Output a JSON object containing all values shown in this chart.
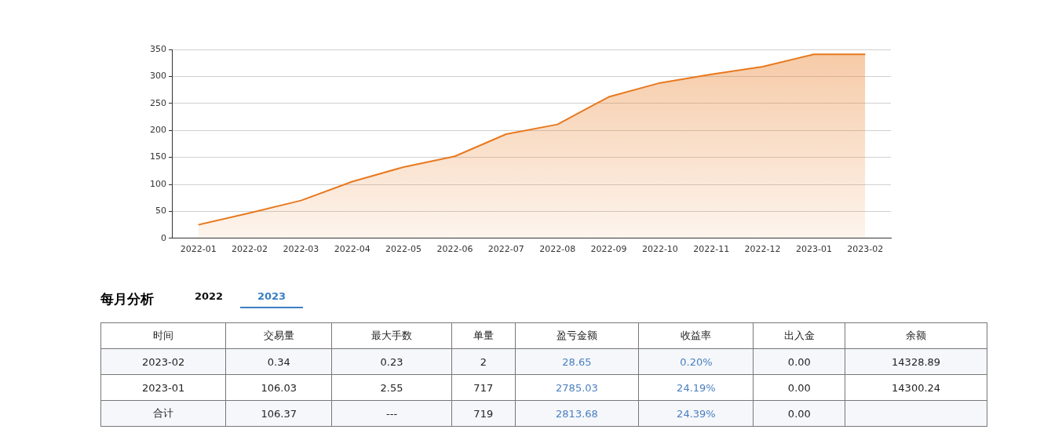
{
  "chart_data": [
    {
      "type": "area",
      "categories": [
        "2022-01",
        "2022-02",
        "2022-03",
        "2022-04",
        "2022-05",
        "2022-06",
        "2022-07",
        "2022-08",
        "2022-09",
        "2022-10",
        "2022-11",
        "2022-12",
        "2023-01",
        "2023-02"
      ],
      "series": [
        {
          "color": "#e8791f",
          "values": [
            25,
            47,
            70,
            105,
            132,
            152,
            193,
            211,
            262,
            288,
            304,
            318,
            341,
            341
          ]
        }
      ],
      "ylim": [
        0,
        350
      ],
      "yticks": [
        0,
        50,
        100,
        150,
        200,
        250,
        300,
        350
      ],
      "grid": "y",
      "marker": "none"
    },
    {
      "type": "other",
      "title": "每月分析",
      "categories": [
        "时间",
        "交易量",
        "最大手数",
        "单量",
        "盈亏金额",
        "收益率",
        "出入金",
        "余额"
      ],
      "annotations": [
        "2022",
        "2023",
        "2023-02",
        "0.34",
        "0.23",
        "2",
        "28.65",
        "0.20%",
        "0.00",
        "14328.89",
        "2023-01",
        "106.03",
        "2.55",
        "717",
        "2785.03",
        "24.19%",
        "0.00",
        "14300.24",
        "合计",
        "106.37",
        "---",
        "719",
        "2813.68",
        "24.39%",
        "0.00"
      ]
    }
  ]
}
